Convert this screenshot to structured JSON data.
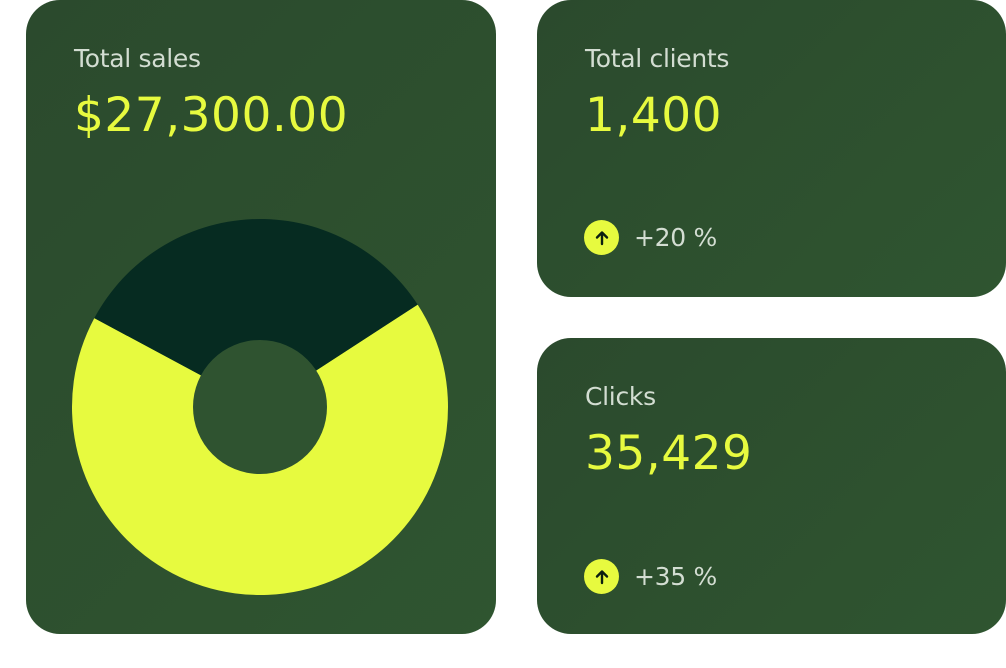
{
  "colors": {
    "card_background": "#2f5330",
    "accent": "#e7fa3f",
    "label": "#d3ddd2",
    "donut_dark": "#062b21"
  },
  "cards": {
    "total_sales": {
      "label": "Total sales",
      "value": "$27,300.00"
    },
    "total_clients": {
      "label": "Total clients",
      "value": "1,400",
      "trend": {
        "icon": "arrow-up-icon",
        "text": "+20 %"
      }
    },
    "clicks": {
      "label": "Clicks",
      "value": "35,429",
      "trend": {
        "icon": "arrow-up-icon",
        "text": "+35 %"
      }
    }
  },
  "chart_data": {
    "type": "pie",
    "donut": true,
    "slices": [
      {
        "value": 67,
        "color": "#e7fa3f"
      },
      {
        "value": 33,
        "color": "#062b21"
      }
    ],
    "start_angle_deg": 57
  }
}
